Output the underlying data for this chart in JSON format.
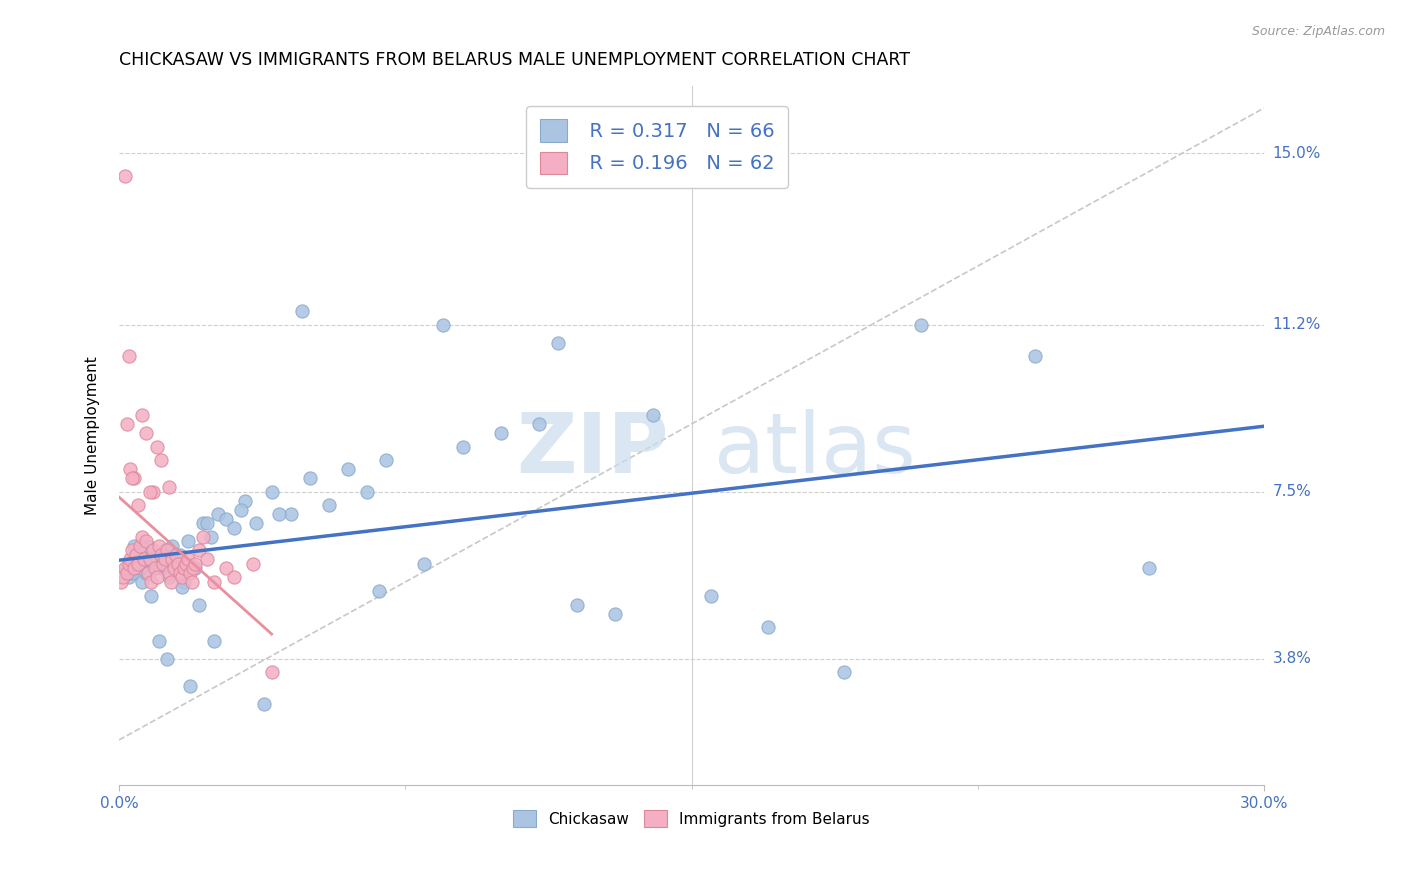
{
  "title": "CHICKASAW VS IMMIGRANTS FROM BELARUS MALE UNEMPLOYMENT CORRELATION CHART",
  "source": "Source: ZipAtlas.com",
  "ylabel": "Male Unemployment",
  "ytick_labels": [
    "3.8%",
    "7.5%",
    "11.2%",
    "15.0%"
  ],
  "ytick_values": [
    3.8,
    7.5,
    11.2,
    15.0
  ],
  "xmin": 0.0,
  "xmax": 30.0,
  "ymin": 1.0,
  "ymax": 16.5,
  "legend_r1": "R = 0.317",
  "legend_n1": "N = 66",
  "legend_r2": "R = 0.196",
  "legend_n2": "N = 62",
  "color_blue": "#aac4e2",
  "color_pink": "#f4afc4",
  "color_blue_text": "#4472c4",
  "color_blue_line": "#4472c4",
  "color_pink_line": "#e8909e",
  "color_gray_dashed": "#c8c8c8",
  "legend_label_1": "Chickasaw",
  "legend_label_2": "Immigrants from Belarus",
  "chickasaw_x": [
    0.2,
    0.3,
    0.4,
    0.5,
    0.6,
    0.7,
    0.8,
    0.9,
    1.0,
    1.1,
    1.2,
    1.3,
    1.4,
    1.5,
    1.6,
    1.7,
    1.8,
    1.9,
    2.0,
    2.2,
    2.4,
    2.6,
    2.8,
    3.0,
    3.3,
    3.6,
    4.0,
    4.5,
    5.0,
    5.5,
    6.0,
    6.5,
    7.0,
    8.0,
    9.0,
    10.0,
    11.0,
    12.0,
    13.0,
    14.0,
    15.5,
    17.0,
    19.0,
    21.0,
    24.0,
    27.0,
    0.25,
    0.35,
    0.55,
    0.75,
    0.85,
    1.05,
    1.25,
    1.45,
    1.65,
    1.85,
    2.1,
    2.5,
    3.8,
    4.8,
    6.8,
    8.5,
    11.5,
    3.2,
    4.2,
    2.3
  ],
  "chickasaw_y": [
    5.8,
    5.7,
    6.3,
    6.0,
    5.5,
    5.7,
    5.9,
    6.1,
    6.0,
    5.8,
    6.2,
    5.6,
    6.3,
    5.9,
    6.1,
    5.5,
    6.4,
    5.8,
    5.8,
    6.8,
    6.5,
    7.0,
    6.9,
    6.7,
    7.3,
    6.8,
    7.5,
    7.0,
    7.8,
    7.2,
    8.0,
    7.5,
    8.2,
    5.9,
    8.5,
    8.8,
    9.0,
    5.0,
    4.8,
    9.2,
    5.2,
    4.5,
    3.5,
    11.2,
    10.5,
    5.8,
    5.6,
    5.7,
    5.8,
    6.3,
    5.2,
    4.2,
    3.8,
    6.0,
    5.4,
    3.2,
    5.0,
    4.2,
    2.8,
    11.5,
    5.3,
    11.2,
    10.8,
    7.1,
    7.0,
    6.8
  ],
  "belarus_x": [
    0.05,
    0.1,
    0.15,
    0.2,
    0.25,
    0.3,
    0.35,
    0.4,
    0.45,
    0.5,
    0.55,
    0.6,
    0.65,
    0.7,
    0.75,
    0.8,
    0.85,
    0.9,
    0.95,
    1.0,
    1.05,
    1.1,
    1.15,
    1.2,
    1.25,
    1.3,
    1.35,
    1.4,
    1.45,
    1.5,
    1.55,
    1.6,
    1.65,
    1.7,
    1.75,
    1.8,
    1.85,
    1.9,
    1.95,
    2.0,
    2.1,
    2.2,
    2.3,
    2.5,
    2.8,
    3.0,
    3.5,
    0.3,
    0.6,
    0.7,
    0.9,
    1.0,
    0.2,
    0.4,
    0.5,
    0.8,
    0.35,
    1.1,
    1.3,
    0.25,
    0.15,
    4.0
  ],
  "belarus_y": [
    5.5,
    5.6,
    5.8,
    5.7,
    5.9,
    6.0,
    6.2,
    5.8,
    6.1,
    5.9,
    6.3,
    6.5,
    6.0,
    6.4,
    5.7,
    6.0,
    5.5,
    6.2,
    5.8,
    5.6,
    6.3,
    6.1,
    5.9,
    6.0,
    6.2,
    5.7,
    5.5,
    6.0,
    5.8,
    6.1,
    5.9,
    5.7,
    5.6,
    5.8,
    5.9,
    6.0,
    5.7,
    5.5,
    5.8,
    5.9,
    6.2,
    6.5,
    6.0,
    5.5,
    5.8,
    5.6,
    5.9,
    8.0,
    9.2,
    8.8,
    7.5,
    8.5,
    9.0,
    7.8,
    7.2,
    7.5,
    7.8,
    8.2,
    7.6,
    10.5,
    14.5,
    3.5
  ]
}
